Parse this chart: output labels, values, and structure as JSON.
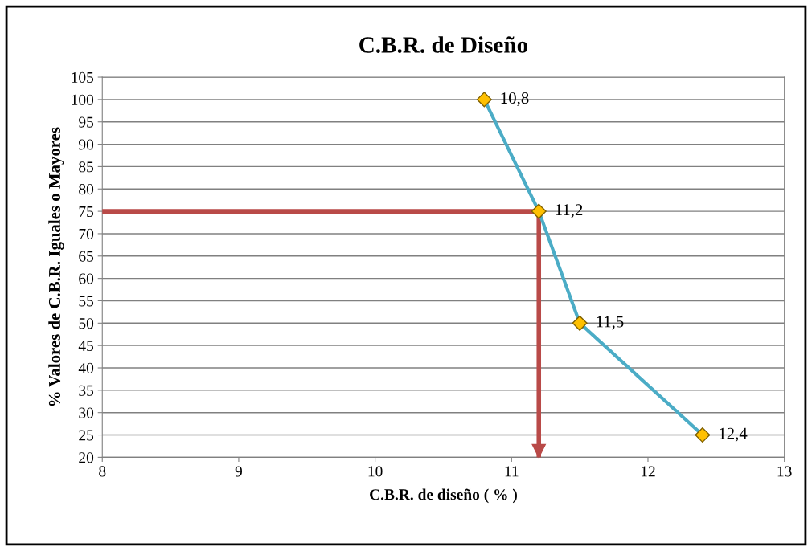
{
  "chart_data": {
    "type": "line",
    "title": "C.B.R. de Diseño",
    "xlabel": "C.B.R. de diseño ( % )",
    "ylabel": "% Valores de C.B.R. Iguales o Mayores",
    "series": [
      {
        "color": "#4bacc6",
        "x": [
          10.8,
          11.2,
          11.5,
          12.4
        ],
        "values": [
          100,
          75,
          50,
          25
        ],
        "colors": [
          "#ffc000",
          "#ffc000",
          "#ffc000",
          "#ffc000"
        ],
        "marker": "diamond"
      },
      {
        "color": "#b94a48",
        "x": [
          8,
          11.2,
          11.2
        ],
        "values": [
          75,
          75,
          20
        ],
        "marker": "none"
      }
    ],
    "annotations": [
      {
        "text": "10,8",
        "x": 10.8,
        "y": 100
      },
      {
        "text": "11,2",
        "x": 11.2,
        "y": 75
      },
      {
        "text": "11,5",
        "x": 11.5,
        "y": 50
      },
      {
        "text": "12,4",
        "x": 12.4,
        "y": 25
      }
    ],
    "xlim": [
      8,
      13
    ],
    "xticks": [
      8,
      9,
      10,
      11,
      12,
      13
    ],
    "ylim": [
      20,
      105
    ],
    "yticks": [
      20,
      25,
      30,
      35,
      40,
      45,
      50,
      55,
      60,
      65,
      70,
      75,
      80,
      85,
      90,
      95,
      100,
      105
    ],
    "grid": "y",
    "legend": false
  }
}
